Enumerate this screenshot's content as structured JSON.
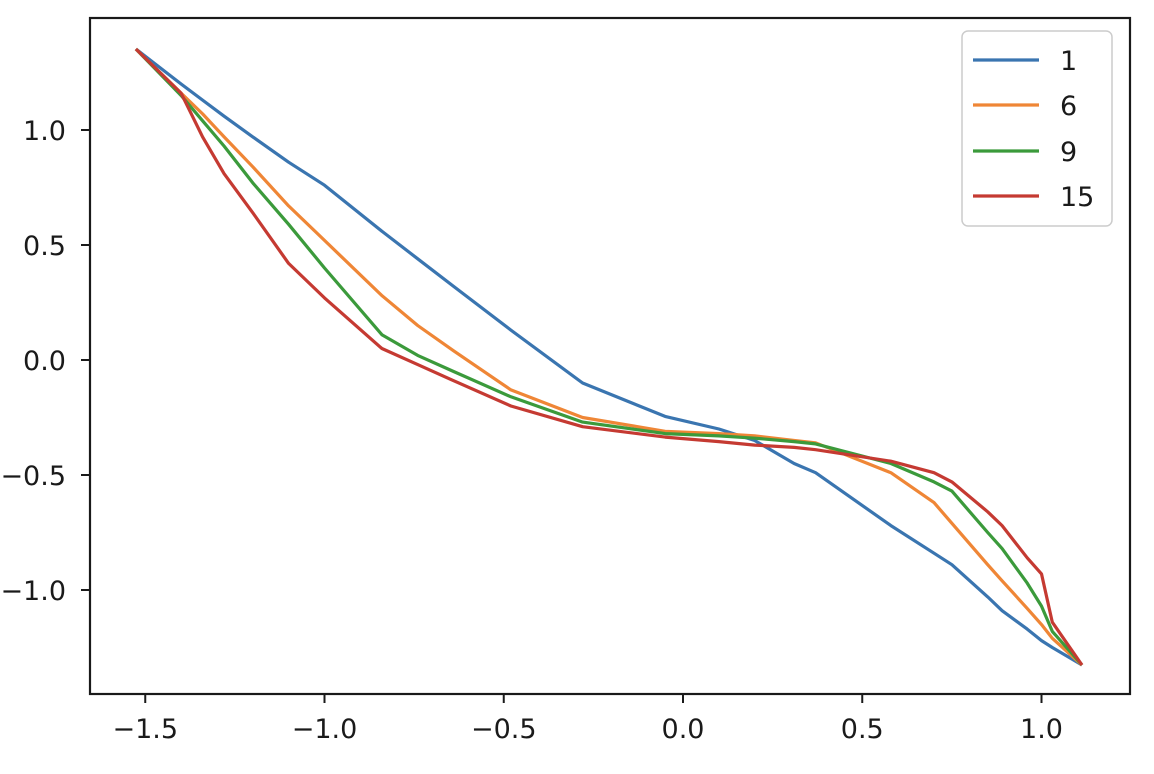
{
  "chart_data": {
    "type": "line",
    "title": "",
    "xlabel": "",
    "ylabel": "",
    "xlim": [
      -1.65,
      1.26
    ],
    "ylim": [
      -1.46,
      1.49
    ],
    "grid": false,
    "legend_position": "upper right",
    "x_ticks": [
      {
        "value": -1.5,
        "label": "−1.5"
      },
      {
        "value": -1.0,
        "label": "−1.0"
      },
      {
        "value": -0.5,
        "label": "−0.5"
      },
      {
        "value": 0.0,
        "label": "0.0"
      },
      {
        "value": 0.5,
        "label": "0.5"
      },
      {
        "value": 1.0,
        "label": "1.0"
      }
    ],
    "y_ticks": [
      {
        "value": 1.0,
        "label": "1.0"
      },
      {
        "value": 0.5,
        "label": "0.5"
      },
      {
        "value": 0.0,
        "label": "0.0"
      },
      {
        "value": -0.5,
        "label": "−0.5"
      },
      {
        "value": -1.0,
        "label": "−1.0"
      }
    ],
    "x": [
      -1.526,
      -1.4,
      -1.34,
      -1.28,
      -1.2,
      -1.1,
      -1.0,
      -0.84,
      -0.74,
      -0.64,
      -0.48,
      -0.28,
      -0.05,
      0.1,
      0.2,
      0.31,
      0.37,
      0.58,
      0.7,
      0.75,
      0.85,
      0.89,
      0.96,
      1.0,
      1.03,
      1.113
    ],
    "series": [
      {
        "name": "1",
        "color": "#3a75b0",
        "values": [
          1.352,
          1.2,
          1.13,
          1.06,
          0.97,
          0.86,
          0.76,
          0.56,
          0.44,
          0.32,
          0.13,
          -0.1,
          -0.245,
          -0.3,
          -0.35,
          -0.45,
          -0.49,
          -0.72,
          -0.84,
          -0.89,
          -1.03,
          -1.09,
          -1.17,
          -1.22,
          -1.25,
          -1.326
        ]
      },
      {
        "name": "6",
        "color": "#ef8636",
        "values": [
          1.352,
          1.16,
          1.07,
          0.97,
          0.84,
          0.67,
          0.52,
          0.28,
          0.15,
          0.04,
          -0.13,
          -0.25,
          -0.31,
          -0.32,
          -0.33,
          -0.35,
          -0.36,
          -0.49,
          -0.62,
          -0.71,
          -0.89,
          -0.96,
          -1.08,
          -1.15,
          -1.21,
          -1.326
        ]
      },
      {
        "name": "9",
        "color": "#3b9a3b",
        "values": [
          1.352,
          1.15,
          1.04,
          0.93,
          0.77,
          0.59,
          0.4,
          0.11,
          0.02,
          -0.05,
          -0.16,
          -0.27,
          -0.32,
          -0.33,
          -0.34,
          -0.355,
          -0.365,
          -0.45,
          -0.53,
          -0.57,
          -0.75,
          -0.82,
          -0.97,
          -1.07,
          -1.18,
          -1.326
        ]
      },
      {
        "name": "15",
        "color": "#c53a32",
        "values": [
          1.352,
          1.16,
          0.97,
          0.81,
          0.64,
          0.42,
          0.27,
          0.05,
          -0.02,
          -0.09,
          -0.2,
          -0.29,
          -0.335,
          -0.355,
          -0.37,
          -0.38,
          -0.39,
          -0.44,
          -0.49,
          -0.53,
          -0.66,
          -0.72,
          -0.86,
          -0.93,
          -1.14,
          -1.326
        ]
      }
    ]
  },
  "legend": {
    "items": [
      {
        "label": "1",
        "color": "#3a75b0"
      },
      {
        "label": "6",
        "color": "#ef8636"
      },
      {
        "label": "9",
        "color": "#3b9a3b"
      },
      {
        "label": "15",
        "color": "#c53a32"
      }
    ]
  }
}
